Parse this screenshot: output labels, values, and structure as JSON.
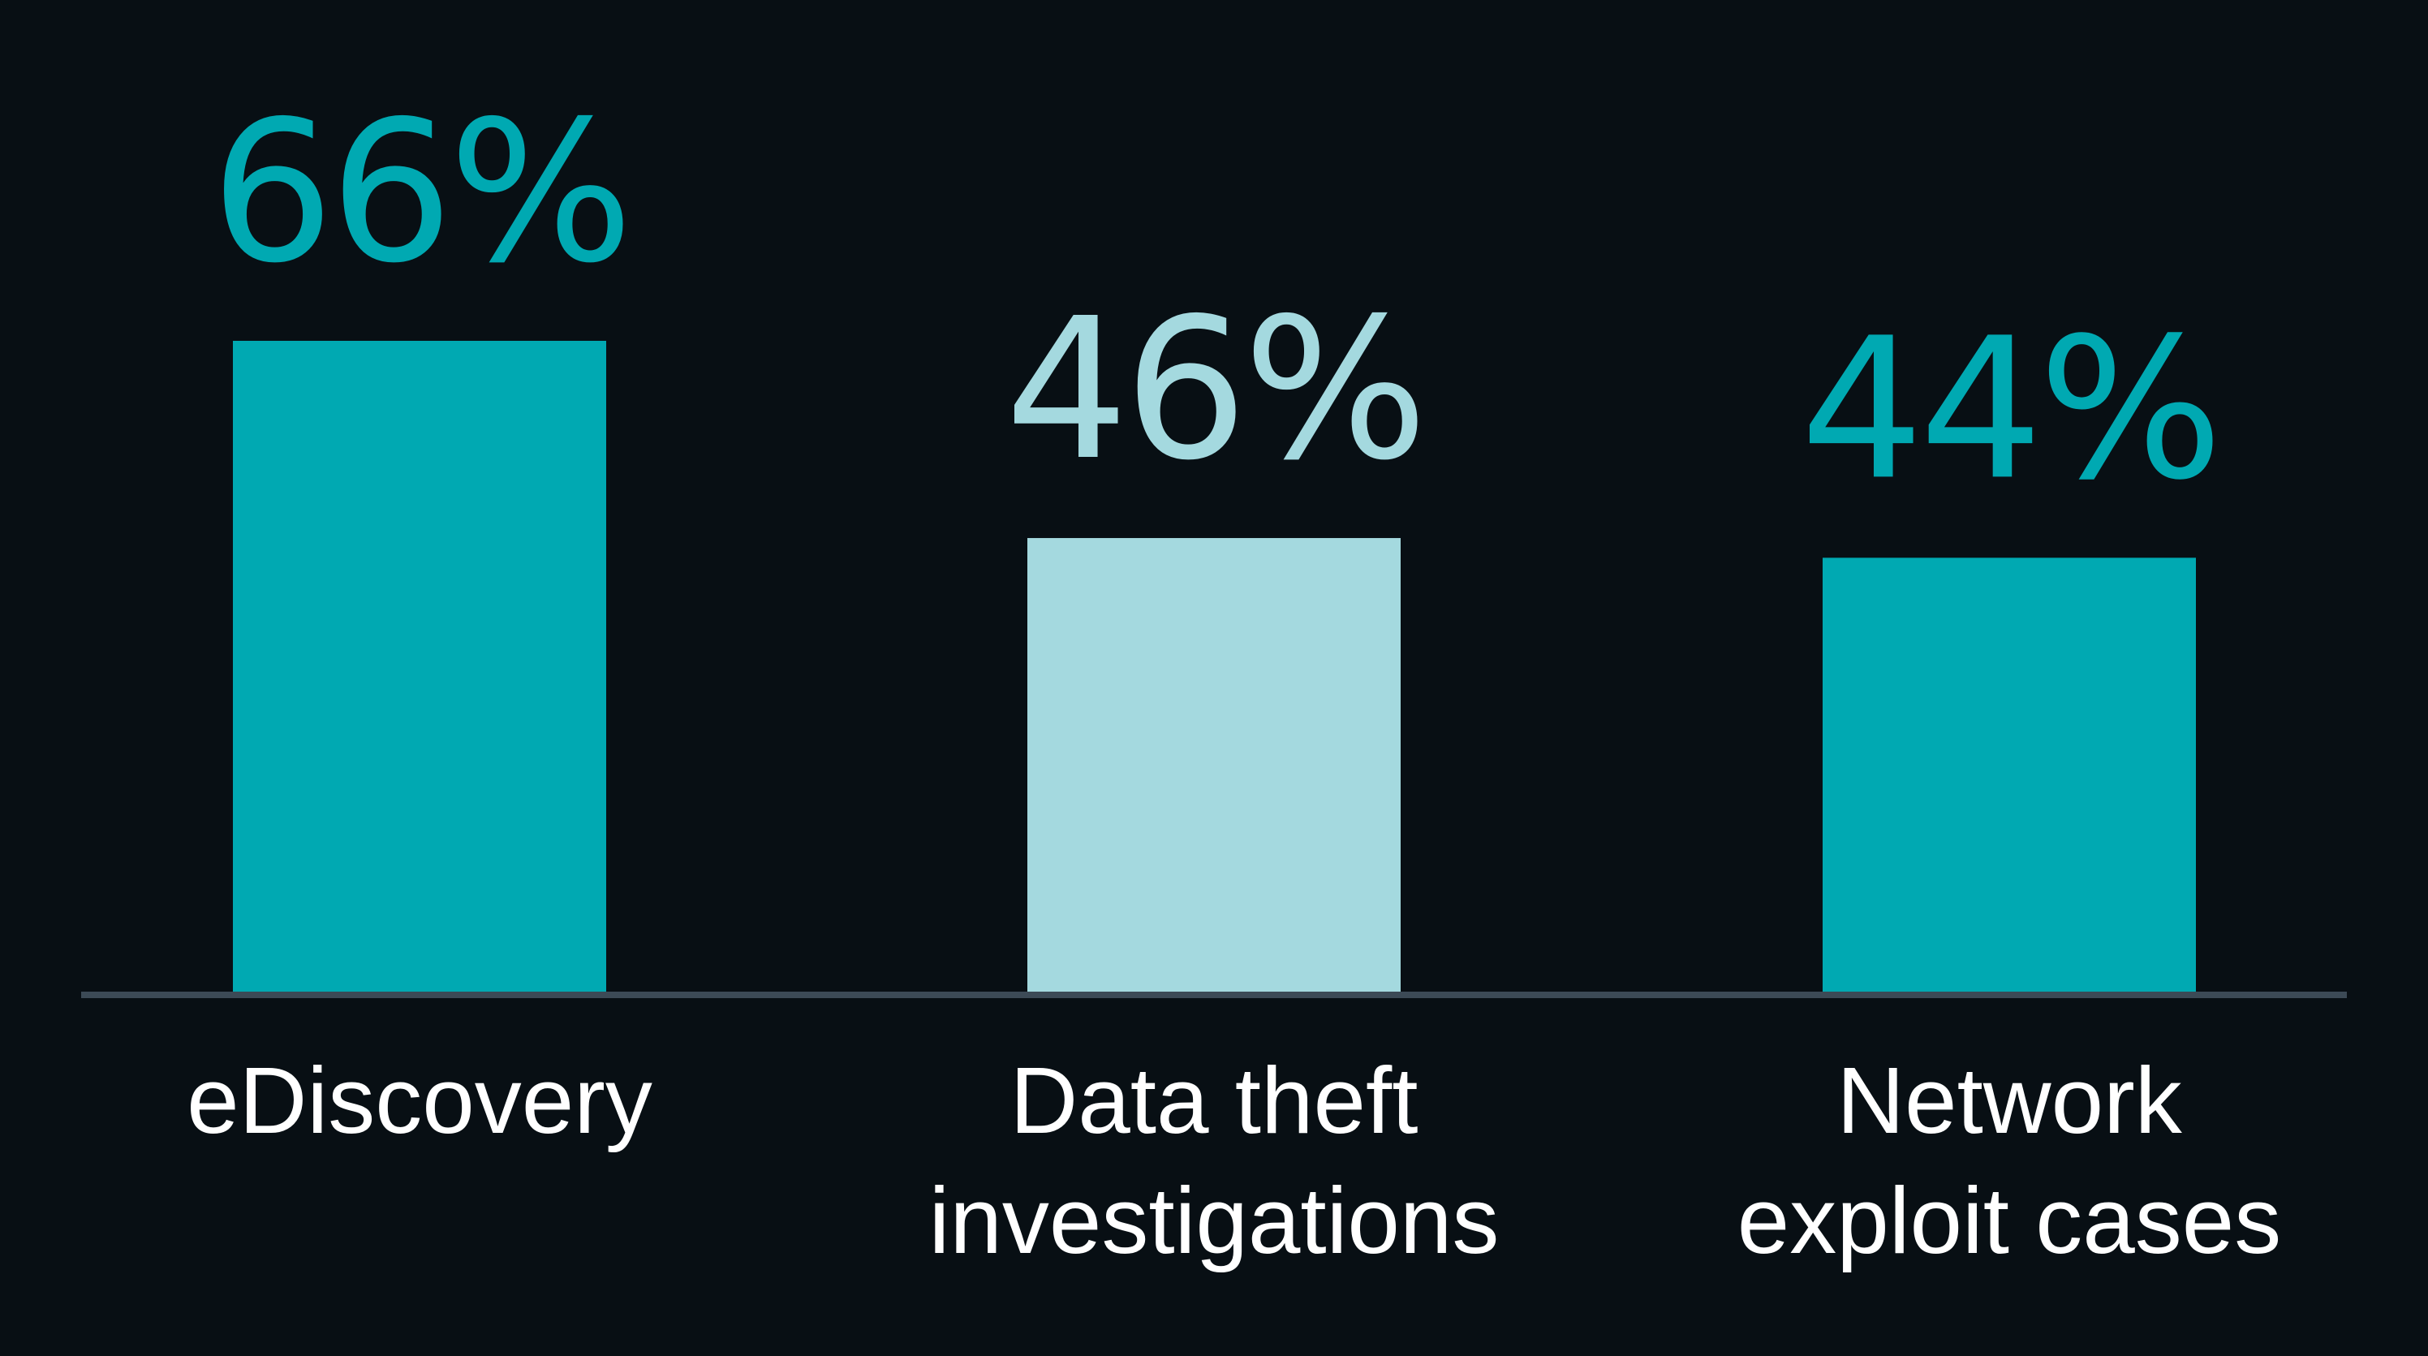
{
  "chart_data": {
    "type": "bar",
    "categories": [
      "eDiscovery",
      "Data theft investigations",
      "Network exploit cases"
    ],
    "category_lines": [
      [
        "eDiscovery"
      ],
      [
        "Data theft",
        "investigations"
      ],
      [
        "Network",
        "exploit cases"
      ]
    ],
    "values": [
      66,
      46,
      44
    ],
    "value_labels": [
      "66%",
      "46%",
      "44%"
    ],
    "ylim": [
      0,
      66
    ],
    "grid": false,
    "legend": "none",
    "title": "",
    "xlabel": "",
    "ylabel": ""
  },
  "colors": {
    "background": "#080f14",
    "bars": [
      "#00a9b2",
      "#a4d9df",
      "#00a9b2"
    ],
    "labels": [
      "#00a9b2",
      "#a4d9df",
      "#00a9b2"
    ],
    "axis": "#3c4a56",
    "category_text": "#ffffff"
  }
}
